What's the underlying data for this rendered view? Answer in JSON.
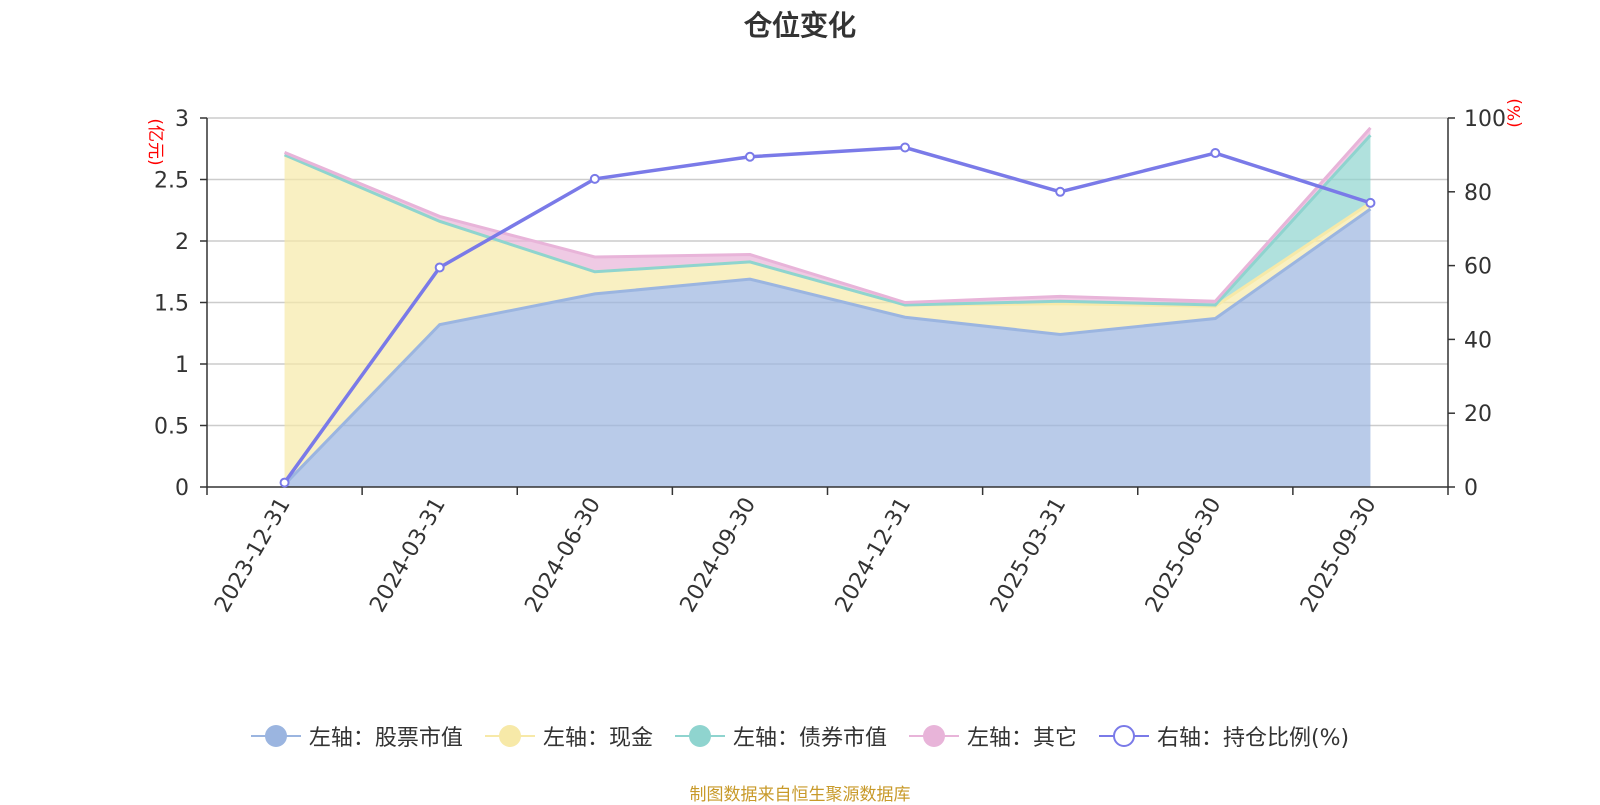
{
  "title": "仓位变化",
  "source": "制图数据来自恒生聚源数据库",
  "colors": {
    "stock": "#9bb5e0",
    "cash": "#f7e9a8",
    "bond": "#8fd4cf",
    "other": "#e8b4d9",
    "ratio": "#7a7ae8",
    "source": "#c89a2a",
    "unit": "#ff0000"
  },
  "legend": [
    {
      "label": "左轴：股票市值",
      "color": "#9bb5e0",
      "style": "filled"
    },
    {
      "label": "左轴：现金",
      "color": "#f7e9a8",
      "style": "filled"
    },
    {
      "label": "左轴：债券市值",
      "color": "#8fd4cf",
      "style": "filled"
    },
    {
      "label": "左轴：其它",
      "color": "#e8b4d9",
      "style": "filled"
    },
    {
      "label": "右轴：持仓比例(%)",
      "color": "#7a7ae8",
      "style": "hollow"
    }
  ],
  "chart_data": {
    "type": "area",
    "title": "仓位变化",
    "categories": [
      "2023-12-31",
      "2024-03-31",
      "2024-06-30",
      "2024-09-30",
      "2024-12-31",
      "2025-03-31",
      "2025-06-30",
      "2025-09-30"
    ],
    "left_axis": {
      "unit": "(亿元)",
      "ylim": [
        0,
        3
      ],
      "ticks": [
        "0",
        "0.5",
        "1",
        "1.5",
        "2",
        "2.5",
        "3"
      ]
    },
    "right_axis": {
      "unit": "(%)",
      "ylim": [
        0,
        100
      ],
      "ticks": [
        "0",
        "20",
        "40",
        "60",
        "80",
        "100"
      ]
    },
    "series": [
      {
        "name": "左轴：股票市值",
        "axis": "left",
        "stack": true,
        "values": [
          0.02,
          1.32,
          1.57,
          1.69,
          1.38,
          1.24,
          1.37,
          2.26
        ]
      },
      {
        "name": "左轴：现金",
        "axis": "left",
        "stack": true,
        "values": [
          2.68,
          0.84,
          0.18,
          0.14,
          0.1,
          0.25,
          0.1,
          0.05
        ]
      },
      {
        "name": "左轴：债券市值",
        "axis": "left",
        "stack": true,
        "values": [
          0.0,
          0.0,
          0.0,
          0.0,
          0.0,
          0.02,
          0.01,
          0.55
        ]
      },
      {
        "name": "左轴：其它",
        "axis": "left",
        "stack": true,
        "values": [
          0.02,
          0.04,
          0.12,
          0.06,
          0.02,
          0.04,
          0.03,
          0.06
        ]
      },
      {
        "name": "右轴：持仓比例(%)",
        "axis": "right",
        "type": "line",
        "values": [
          1.2,
          59.5,
          83.5,
          89.5,
          92.0,
          80.0,
          90.5,
          77.0
        ]
      }
    ],
    "grid": true,
    "legend_position": "bottom"
  }
}
